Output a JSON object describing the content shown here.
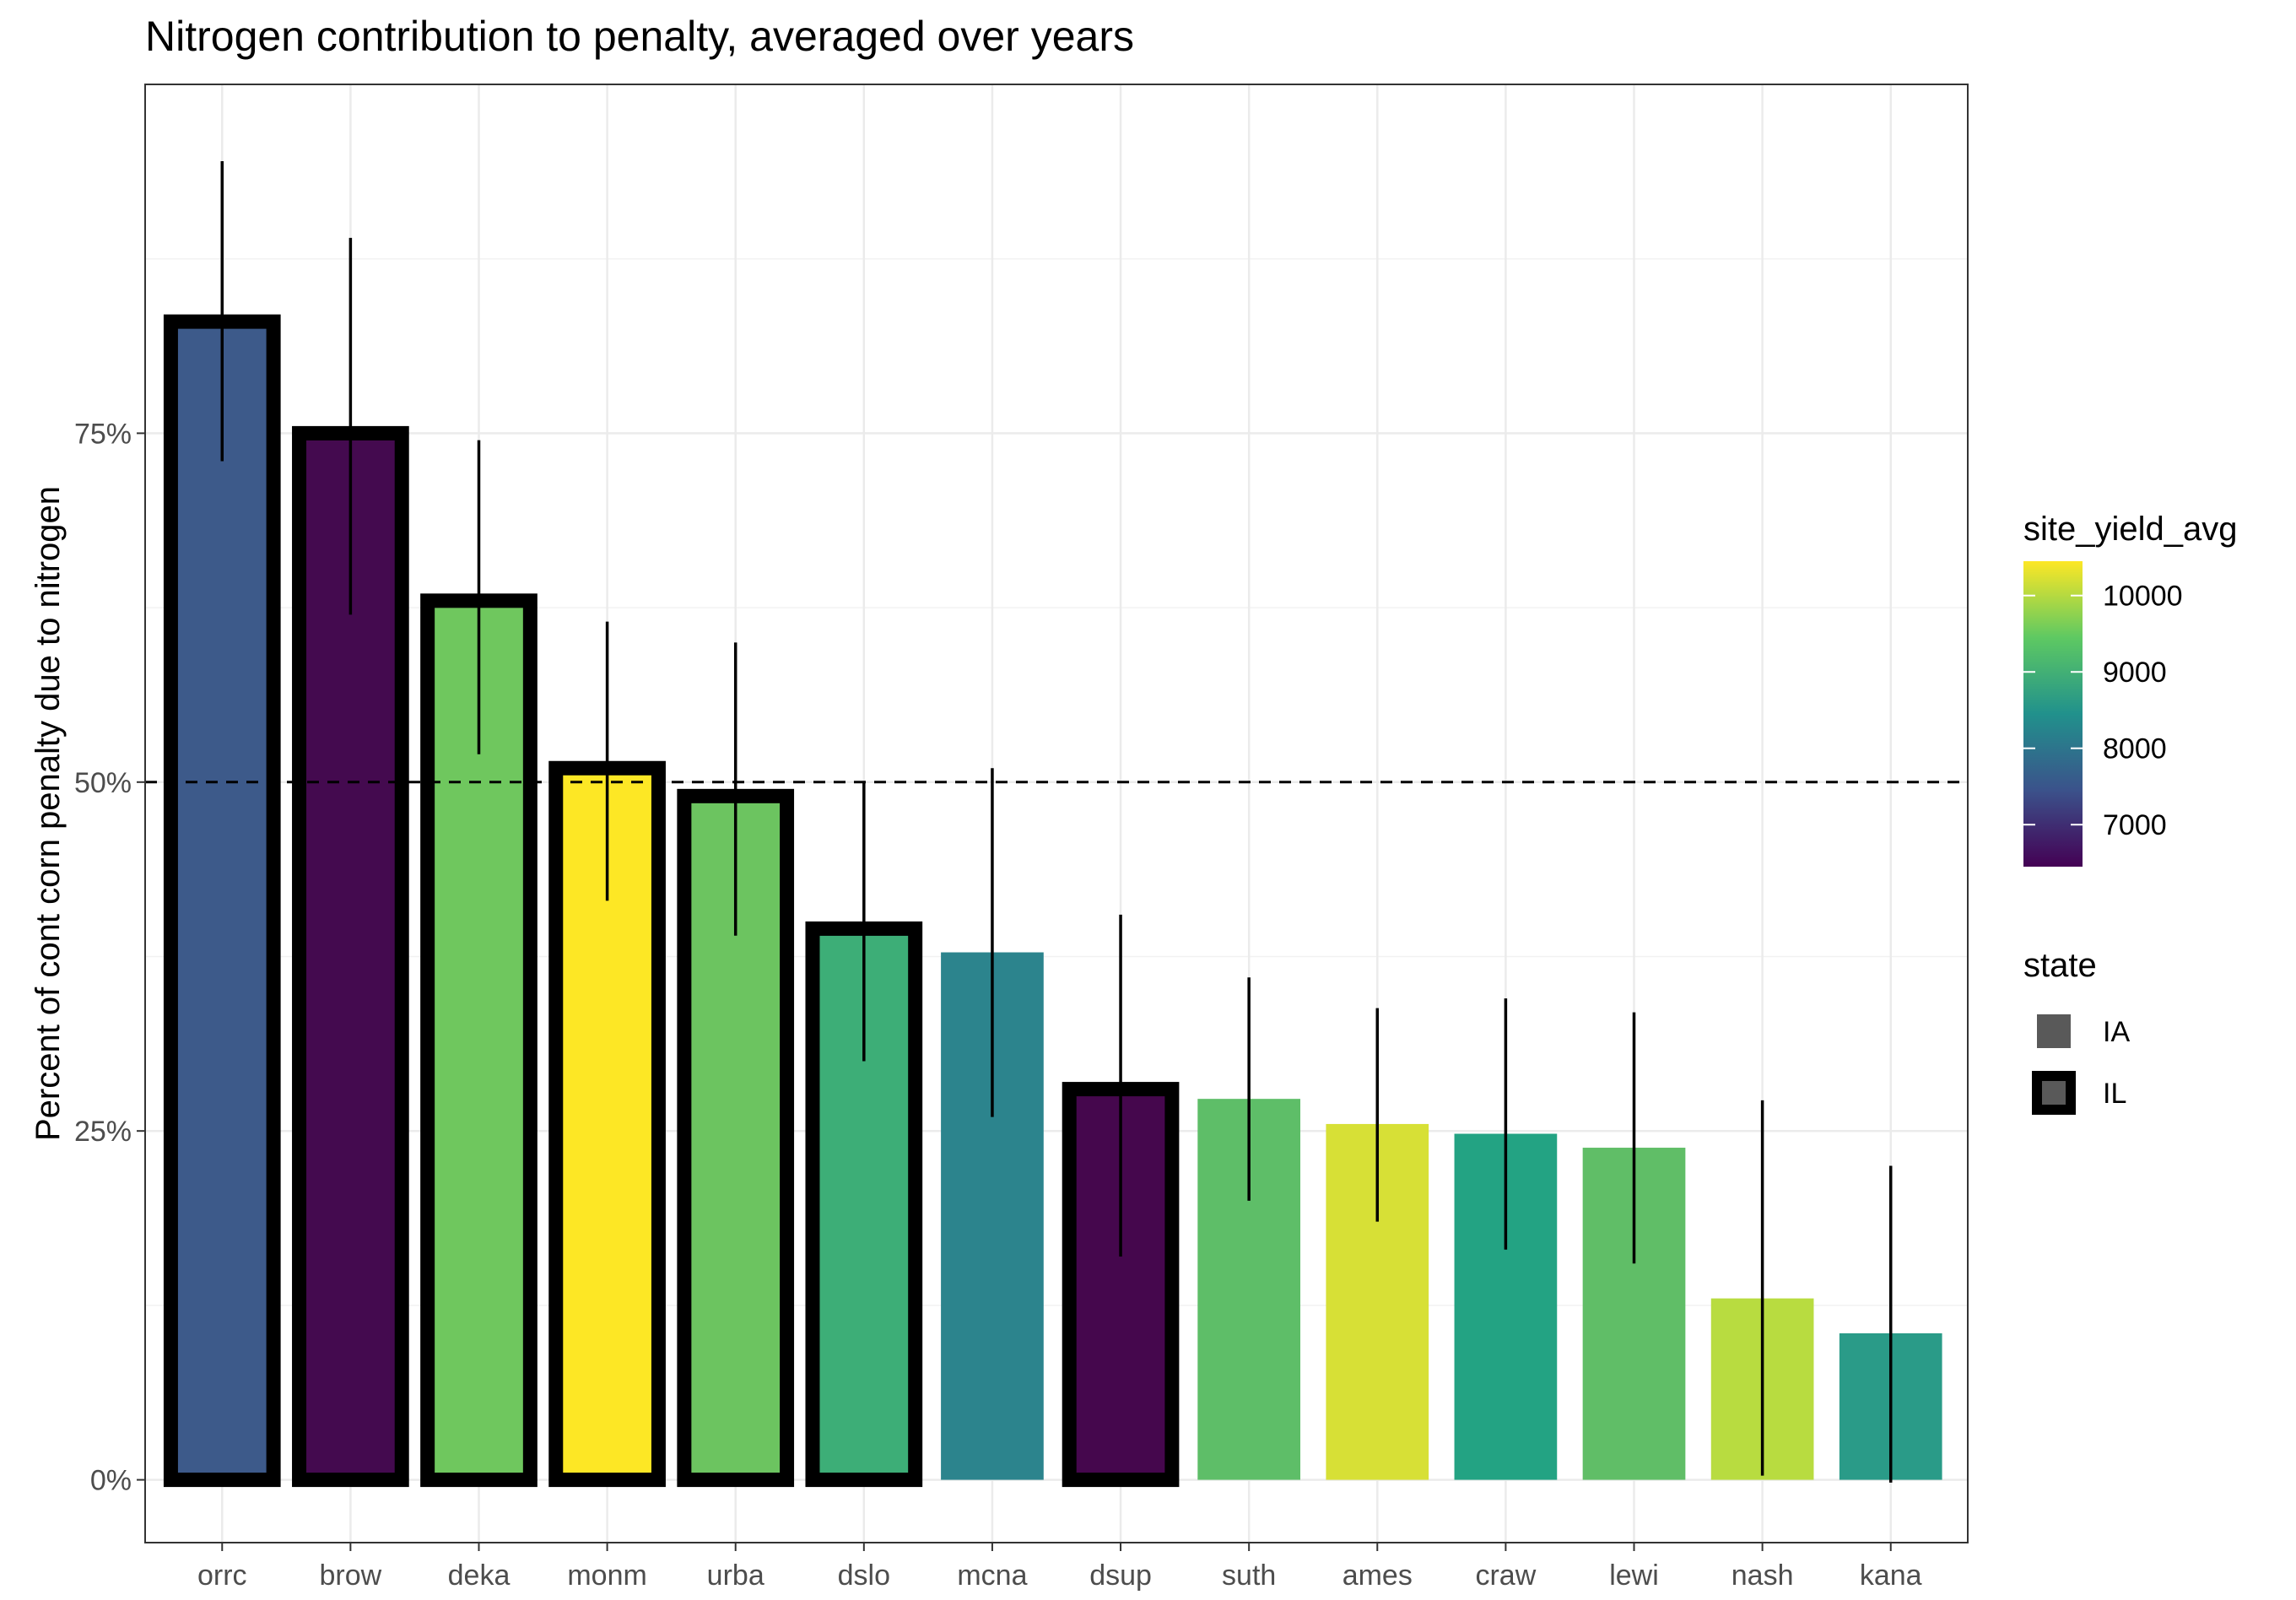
{
  "chart_data": {
    "type": "bar",
    "title": "Nitrogen contribution to penalty, averaged over years",
    "ylabel": "Percent of cont corn penalty due to nitrogen",
    "xlabel": "",
    "ylim": [
      -0.045,
      1.0
    ],
    "yticks": [
      0,
      0.25,
      0.5,
      0.75
    ],
    "ytick_labels": [
      "0%",
      "25%",
      "50%",
      "75%"
    ],
    "categories": [
      "orrc",
      "brow",
      "deka",
      "monm",
      "urba",
      "dslo",
      "mcna",
      "dsup",
      "suth",
      "ames",
      "craw",
      "lewi",
      "nash",
      "kana"
    ],
    "values": [
      0.83,
      0.75,
      0.63,
      0.51,
      0.49,
      0.395,
      0.378,
      0.28,
      0.273,
      0.255,
      0.248,
      0.238,
      0.13,
      0.105
    ],
    "error_low": [
      0.73,
      0.62,
      0.52,
      0.415,
      0.39,
      0.3,
      0.26,
      0.16,
      0.2,
      0.185,
      0.165,
      0.155,
      0.003,
      -0.002
    ],
    "error_high": [
      0.945,
      0.89,
      0.745,
      0.615,
      0.6,
      0.5,
      0.51,
      0.405,
      0.36,
      0.338,
      0.345,
      0.335,
      0.272,
      0.225
    ],
    "state": [
      "IL",
      "IL",
      "IL",
      "IL",
      "IL",
      "IL",
      "IA",
      "IL",
      "IA",
      "IA",
      "IA",
      "IA",
      "IA",
      "IA"
    ],
    "fill_colors": [
      "#3d5a8a",
      "#440a4f",
      "#6fc75e",
      "#fde725",
      "#6cc460",
      "#3dae77",
      "#2c848d",
      "#45074d",
      "#5ebe68",
      "#d7e036",
      "#23a383",
      "#60be67",
      "#b8dc40",
      "#2a9b88"
    ],
    "reference_line": 0.5,
    "grid": true,
    "legend": {
      "placement": "right",
      "fill": {
        "title": "site_yield_avg",
        "ticks": [
          7000,
          8000,
          9000,
          10000
        ],
        "tick_labels": [
          "7000",
          "8000",
          "9000",
          "10000"
        ],
        "range": [
          6450,
          10450
        ],
        "colors": [
          "#440154",
          "#3b528b",
          "#21918c",
          "#5ec962",
          "#fde725"
        ]
      },
      "state": {
        "title": "state",
        "items": [
          {
            "label": "IA",
            "outline": false
          },
          {
            "label": "IL",
            "outline": true
          }
        ]
      }
    }
  }
}
